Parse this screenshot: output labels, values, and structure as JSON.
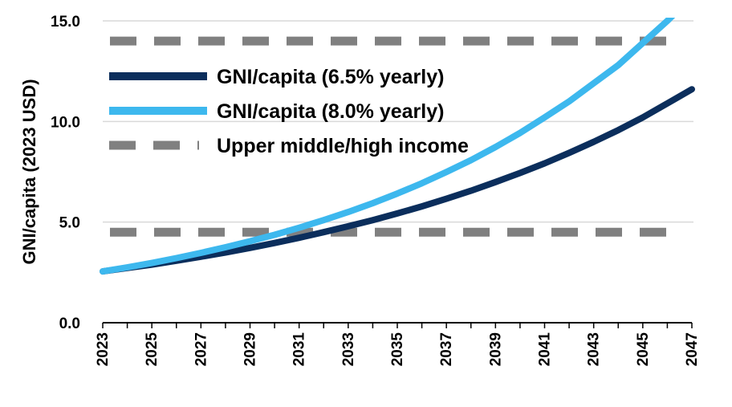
{
  "chart_data": {
    "type": "line",
    "ylabel": "GNI/capita (2023 USD)",
    "xlabel": "",
    "ylim": [
      0,
      15
    ],
    "yticks": [
      0,
      5,
      10,
      15
    ],
    "ytick_labels": [
      "0.0",
      "5.0",
      "10.0",
      "15.0"
    ],
    "xlim": [
      2023,
      2047
    ],
    "xtick_labels": [
      "2023",
      "2025",
      "2027",
      "2029",
      "2031",
      "2033",
      "2035",
      "2037",
      "2039",
      "2041",
      "2043",
      "2045",
      "2047"
    ],
    "grid": true,
    "legend_position": "top-left",
    "series": [
      {
        "name": "GNI/capita (6.5% yearly)",
        "color": "#0b2e5c",
        "style": "solid",
        "x": [
          2023,
          2024,
          2025,
          2026,
          2027,
          2028,
          2029,
          2030,
          2031,
          2032,
          2033,
          2034,
          2035,
          2036,
          2037,
          2038,
          2039,
          2040,
          2041,
          2042,
          2043,
          2044,
          2045,
          2046,
          2047
        ],
        "y": [
          2.55,
          2.72,
          2.89,
          3.08,
          3.28,
          3.49,
          3.72,
          3.96,
          4.22,
          4.5,
          4.79,
          5.1,
          5.43,
          5.78,
          6.16,
          6.56,
          6.99,
          7.44,
          7.92,
          8.44,
          8.99,
          9.57,
          10.2,
          10.9,
          11.6
        ]
      },
      {
        "name": "GNI/capita (8.0% yearly)",
        "color": "#3db8ee",
        "style": "solid",
        "x": [
          2023,
          2024,
          2025,
          2026,
          2027,
          2028,
          2029,
          2030,
          2031,
          2032,
          2033,
          2034,
          2035,
          2036,
          2037,
          2038,
          2039,
          2040,
          2041,
          2042,
          2043,
          2044,
          2045,
          2046,
          2047
        ],
        "y": [
          2.55,
          2.75,
          2.97,
          3.21,
          3.47,
          3.75,
          4.05,
          4.37,
          4.72,
          5.1,
          5.5,
          5.94,
          6.42,
          6.93,
          7.49,
          8.08,
          8.73,
          9.43,
          10.2,
          11.0,
          11.9,
          12.8,
          13.9,
          15.0,
          16.2
        ]
      },
      {
        "name": "Upper middle/high income",
        "color": "#808080",
        "style": "dashed",
        "levels": [
          4.5,
          14.0
        ]
      }
    ]
  }
}
